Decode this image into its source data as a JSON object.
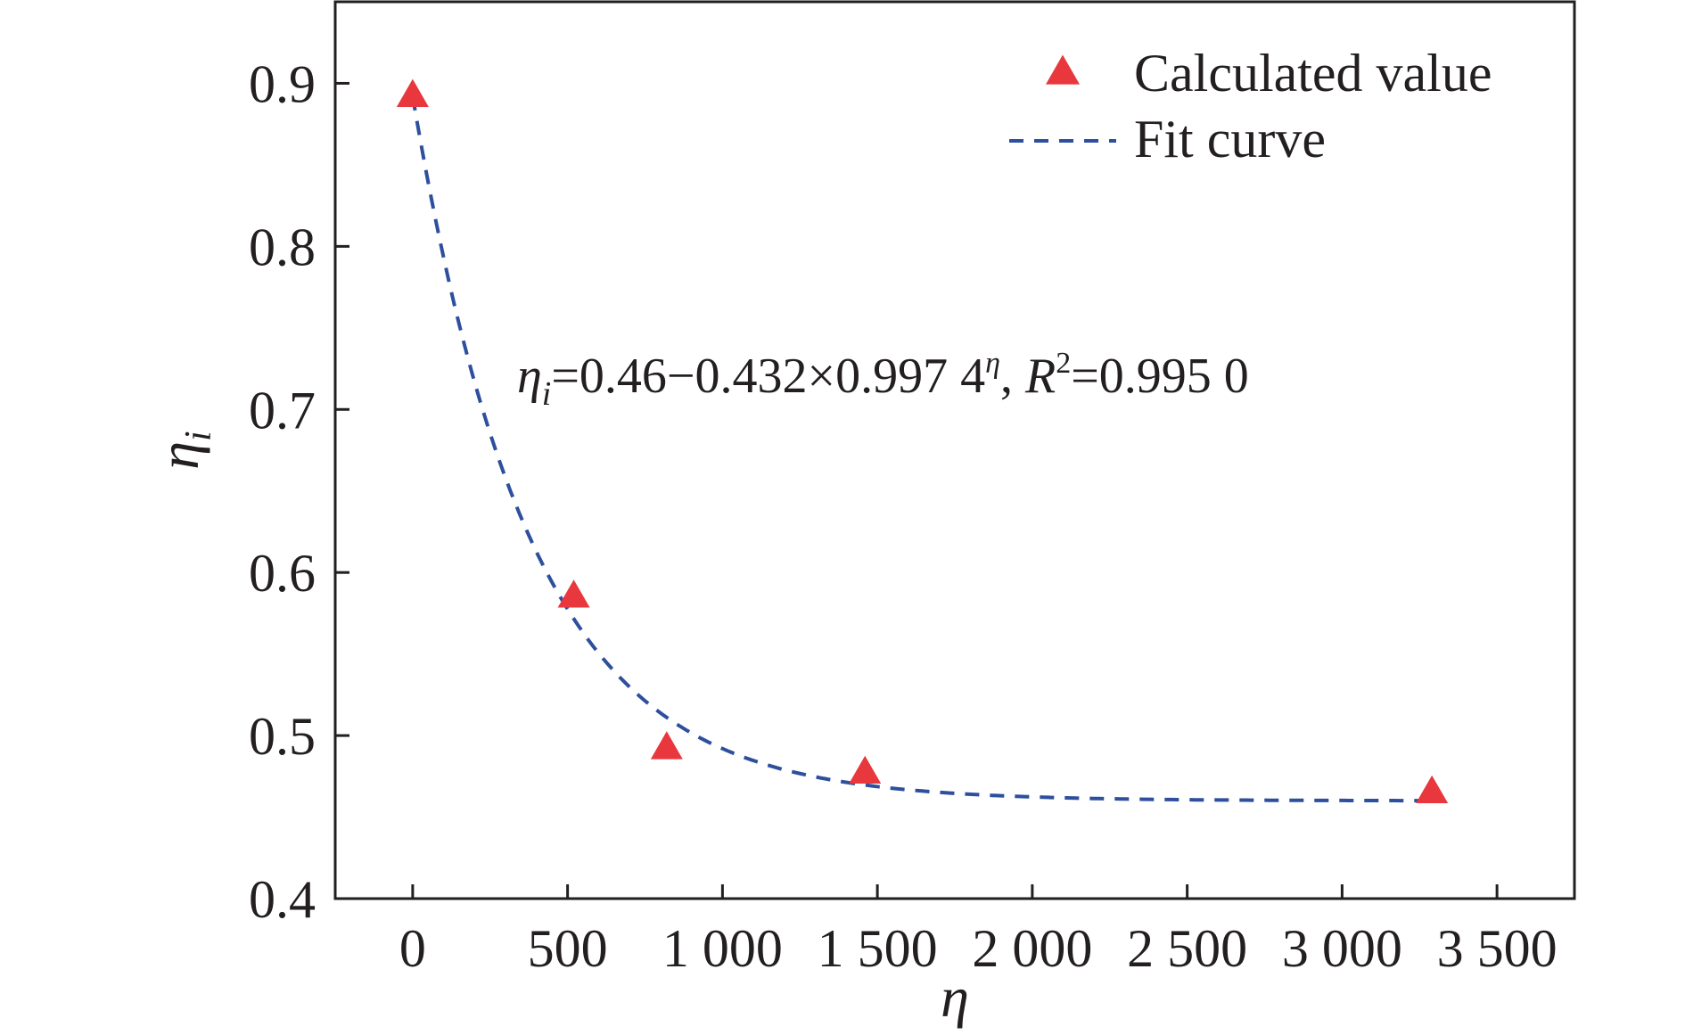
{
  "chart_data": {
    "type": "scatter",
    "xlabel": "η",
    "ylabel": "η",
    "ylabel_subscript": "i",
    "xlim": [
      -250,
      3750
    ],
    "ylim": [
      0.4,
      0.95
    ],
    "x_ticks": [
      0,
      500,
      1000,
      1500,
      2000,
      2500,
      3000,
      3500
    ],
    "x_tick_labels": [
      "0",
      "500",
      "1 000",
      "1 500",
      "2 000",
      "2 500",
      "3 000",
      "3 500"
    ],
    "y_ticks": [
      0.4,
      0.5,
      0.6,
      0.7,
      0.8,
      0.9
    ],
    "y_tick_labels": [
      "0.4",
      "0.5",
      "0.6",
      "0.7",
      "0.8",
      "0.9"
    ],
    "grid": false,
    "legend_position": "top-right",
    "series": [
      {
        "name": "Calculated value",
        "kind": "scatter",
        "marker": "triangle",
        "color": "#e8383d",
        "x": [
          0,
          520,
          820,
          1460,
          3290
        ],
        "y": [
          0.892,
          0.585,
          0.492,
          0.477,
          0.465
        ]
      },
      {
        "name": "Fit curve",
        "kind": "line",
        "dash": "dashed",
        "color": "#2e4f9e",
        "x_range": [
          0,
          3290
        ],
        "formula": {
          "a": 0.46,
          "b": 0.432,
          "base": 0.9974
        }
      }
    ],
    "annotation": {
      "lhs_symbol": "η",
      "lhs_subscript": "i",
      "mid": "=0.46−0.432×0.997 4",
      "exponent": "η",
      "r_sep": ", ",
      "r_symbol": "R",
      "r_exponent": "2",
      "r_value": "=0.995 0"
    }
  }
}
